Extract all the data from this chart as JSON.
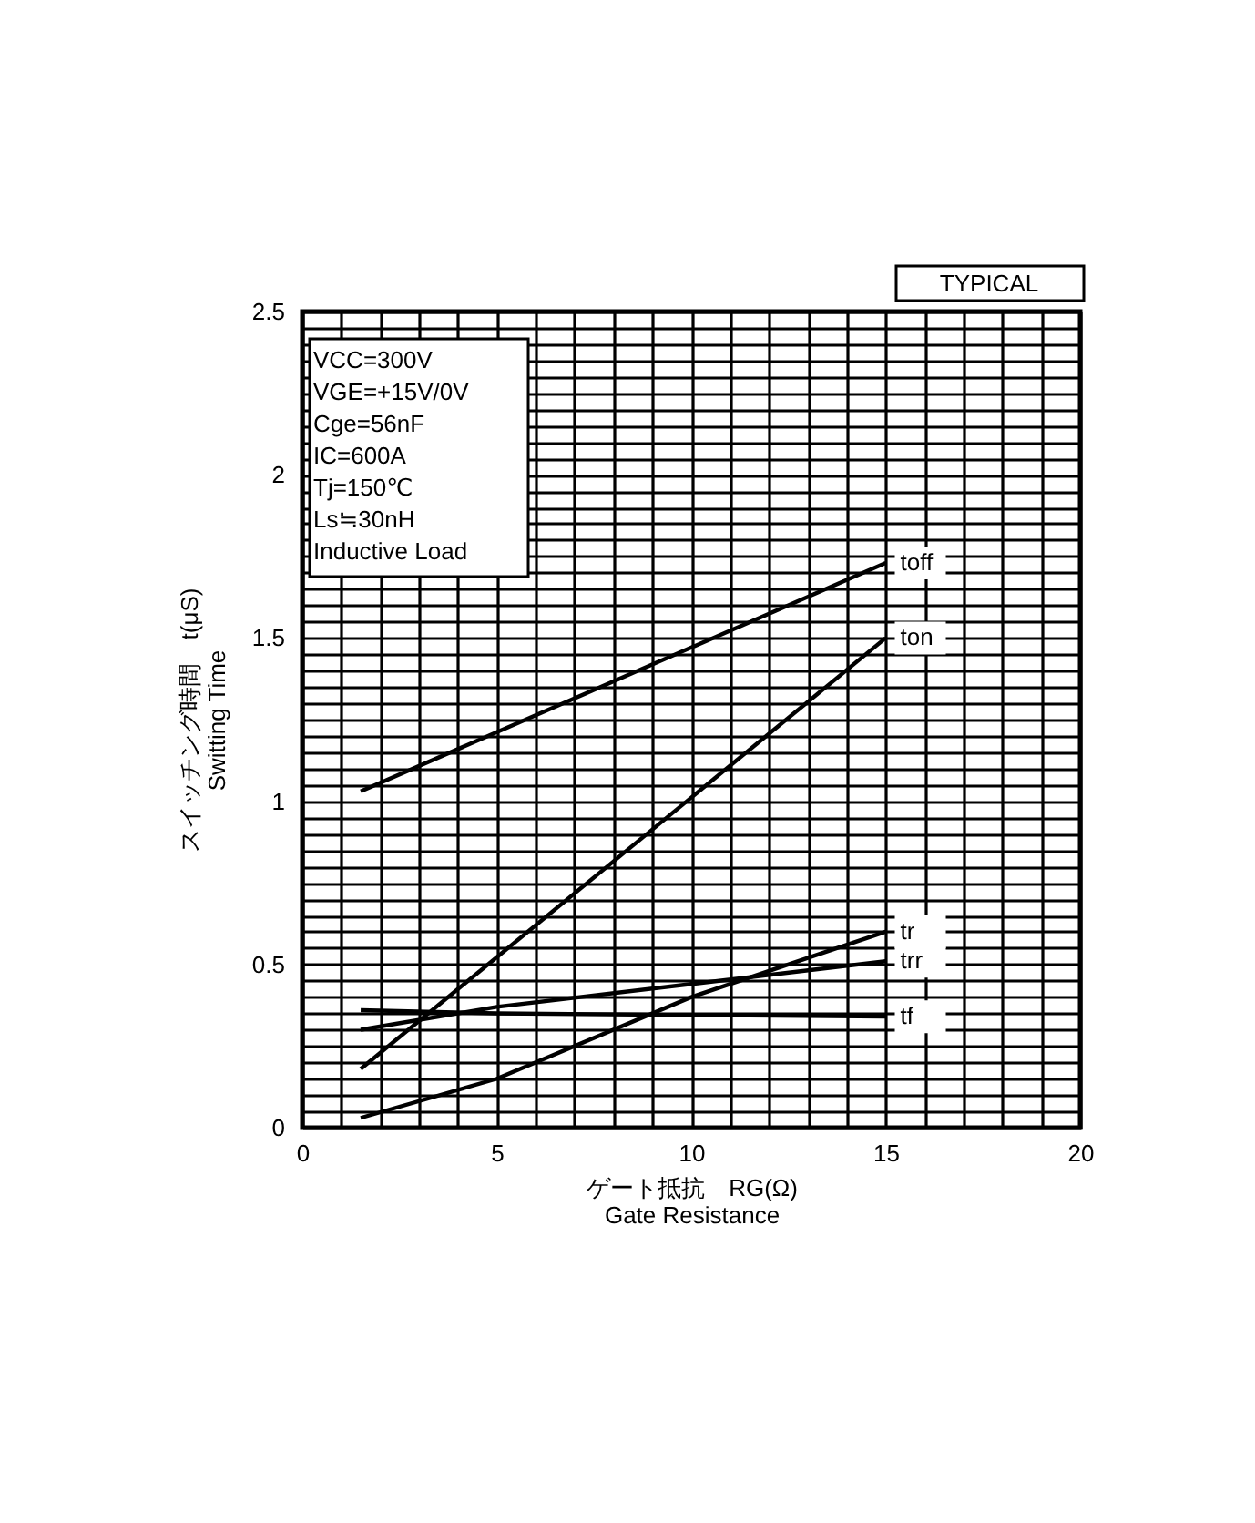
{
  "chart_data": {
    "type": "line",
    "xlabel": "ゲート抵抗　RG(Ω)\nGate Resistance",
    "ylabel": "スイッチング時間　t(μS)\nSwitting Time",
    "xlim": [
      0,
      20
    ],
    "xticks": [
      0,
      5,
      10,
      15,
      20
    ],
    "ylim": [
      0,
      2.5
    ],
    "yticks": [
      0,
      0.5,
      1,
      1.5,
      2,
      2.5
    ],
    "grid": true,
    "legend": false,
    "marker": "none",
    "line_style": "solid",
    "annotations": [
      "TYPICAL",
      "VCC=300V",
      "VGE=+15V/0V",
      "Cge=56nF",
      "IC=600A",
      "Tj=150℃",
      "Ls≒30nH",
      "Inductive Load"
    ],
    "series": [
      {
        "name": "toff",
        "color": "#000000",
        "x": [
          1.5,
          15
        ],
        "values": [
          1.03,
          1.73
        ]
      },
      {
        "name": "ton",
        "color": "#000000",
        "x": [
          1.5,
          15
        ],
        "values": [
          0.18,
          1.5
        ]
      },
      {
        "name": "tr",
        "color": "#000000",
        "x": [
          1.5,
          5,
          10,
          15
        ],
        "values": [
          0.03,
          0.15,
          0.4,
          0.6
        ]
      },
      {
        "name": "trr",
        "color": "#000000",
        "x": [
          1.5,
          5,
          10,
          15
        ],
        "values": [
          0.3,
          0.37,
          0.44,
          0.51
        ]
      },
      {
        "name": "tf",
        "color": "#000000",
        "x": [
          1.5,
          5,
          10,
          15
        ],
        "values": [
          0.36,
          0.35,
          0.345,
          0.34
        ]
      }
    ]
  }
}
